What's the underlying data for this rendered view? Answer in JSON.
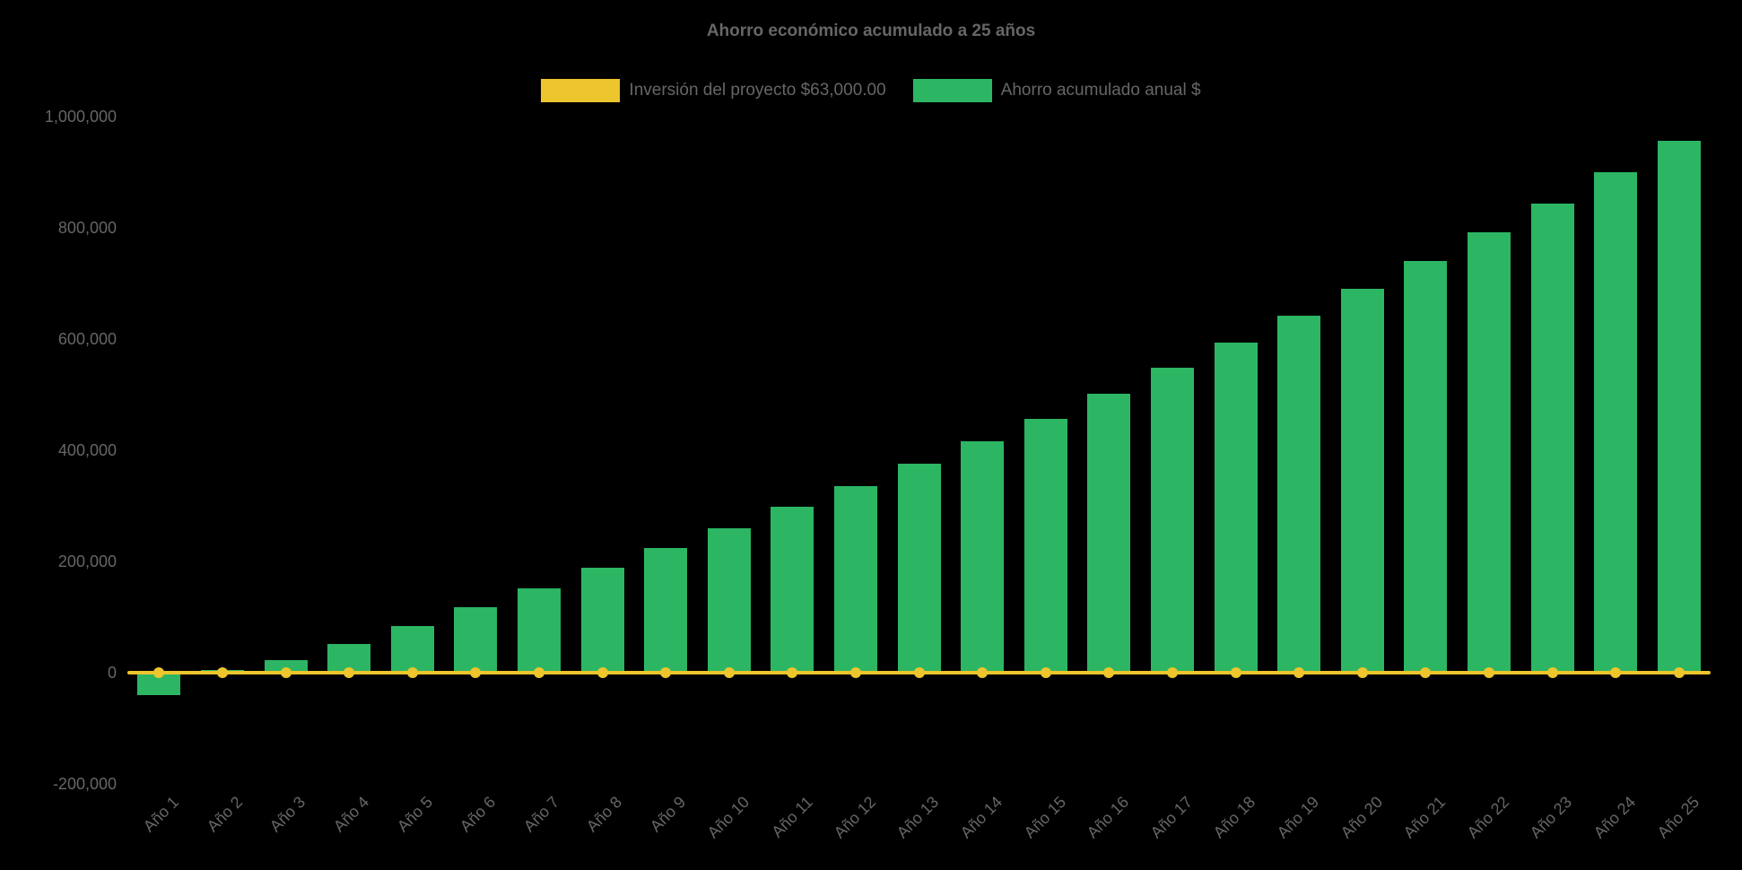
{
  "chart_data": {
    "type": "bar",
    "title": "Ahorro económico acumulado a 25 años",
    "categories": [
      "Año 1",
      "Año 2",
      "Año 3",
      "Año 4",
      "Año 5",
      "Año 6",
      "Año 7",
      "Año 8",
      "Año 9",
      "Año 10",
      "Año 11",
      "Año 12",
      "Año 13",
      "Año 14",
      "Año 15",
      "Año 16",
      "Año 17",
      "Año 18",
      "Año 19",
      "Año 20",
      "Año 21",
      "Año 22",
      "Año 23",
      "Año 24",
      "Año 25"
    ],
    "series": [
      {
        "name": "Inversión del proyecto $63,000.00",
        "type": "line",
        "color": "#EDC52C",
        "values": [
          0,
          0,
          0,
          0,
          0,
          0,
          0,
          0,
          0,
          0,
          0,
          0,
          0,
          0,
          0,
          0,
          0,
          0,
          0,
          0,
          0,
          0,
          0,
          0,
          0
        ]
      },
      {
        "name": "Ahorro acumulado anual $",
        "type": "bar",
        "color": "#2CB664",
        "values": [
          -40000,
          5000,
          22000,
          52000,
          84000,
          118000,
          152000,
          188000,
          224000,
          260000,
          298000,
          336000,
          376000,
          416000,
          456000,
          502000,
          548000,
          594000,
          642000,
          690000,
          740000,
          792000,
          844000,
          900000,
          956000
        ]
      }
    ],
    "y_axis": {
      "ticks": [
        "1,000,000",
        "800,000",
        "600,000",
        "400,000",
        "200,000",
        "0",
        "-200,000"
      ],
      "tick_values": [
        1000000,
        800000,
        600000,
        400000,
        200000,
        0,
        -200000
      ]
    },
    "ylim": [
      -200000,
      1000000
    ],
    "xlabel": "",
    "ylabel": "",
    "grid": false,
    "legend_position": "top",
    "background_color": "#000000",
    "text_color": "#666666"
  }
}
